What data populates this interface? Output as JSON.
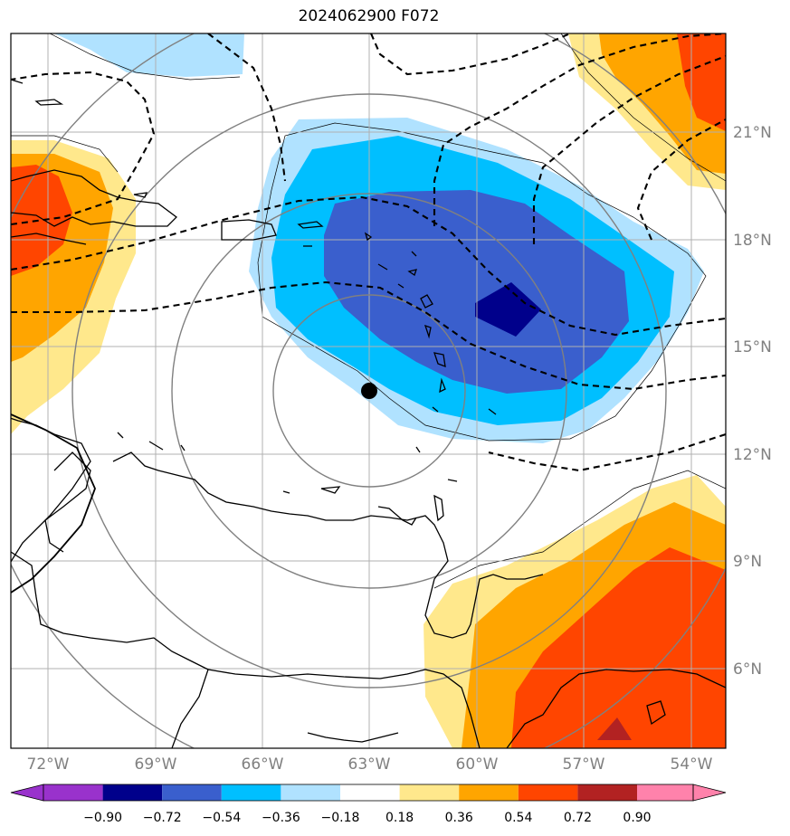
{
  "title": "2024062900 F072",
  "map": {
    "lon_labels": [
      "72°W",
      "69°W",
      "66°W",
      "63°W",
      "60°W",
      "57°W",
      "54°W"
    ],
    "lat_labels": [
      "21°N",
      "18°N",
      "15°N",
      "12°N",
      "9°N",
      "6°N"
    ],
    "lon_range": [
      -73,
      -53
    ],
    "lat_range": [
      4,
      24
    ],
    "center_marker": {
      "lon": -63,
      "lat": 13.8
    }
  },
  "colorbar": {
    "tick_labels": [
      "−0.90",
      "−0.72",
      "−0.54",
      "−0.36",
      "−0.18",
      "0.18",
      "0.36",
      "0.54",
      "0.72",
      "0.90"
    ],
    "colors": [
      "#9932cc",
      "#00008b",
      "#3a5fcd",
      "#00bfff",
      "#b0e2ff",
      "#ffffff",
      "#ffe88c",
      "#ffa500",
      "#ff4500",
      "#b22222",
      "#ff82ab"
    ]
  }
}
